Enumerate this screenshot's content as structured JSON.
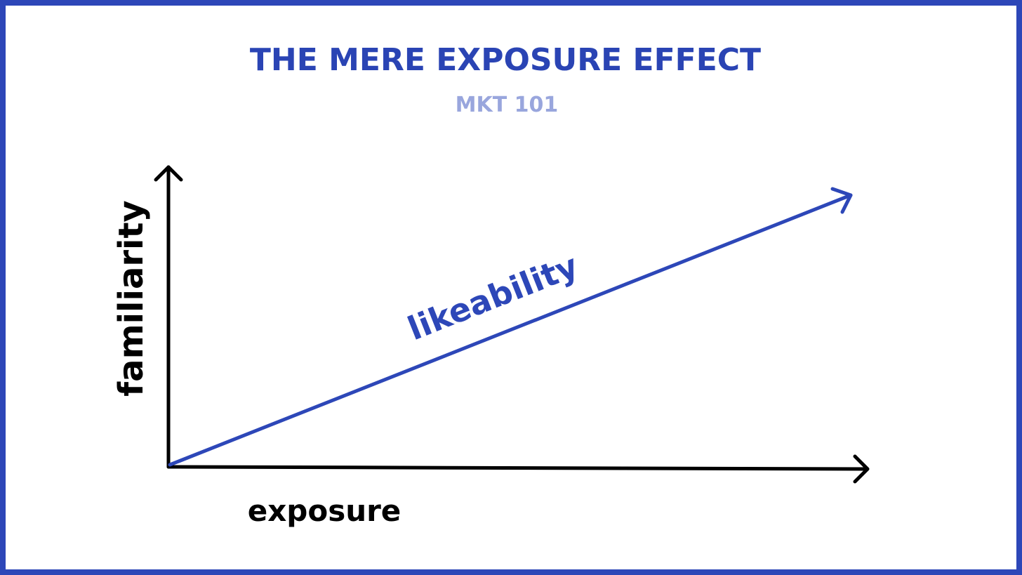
{
  "header": {
    "title": "THE MERE EXPOSURE EFFECT",
    "subtitle": "MKT 101"
  },
  "axes": {
    "y_label": "familiarity",
    "x_label": "exposure"
  },
  "line": {
    "label": "likeability"
  }
}
